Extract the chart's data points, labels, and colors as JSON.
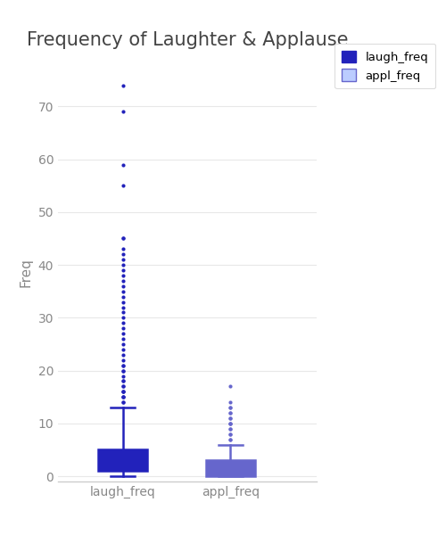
{
  "title": "Frequency of Laughter & Applause",
  "ylabel": "Freq",
  "bg_color": "#ffffff",
  "plot_bg_color": "#ffffff",
  "grid_color": "#e8e8e8",
  "laugh_freq": {
    "median": 2.0,
    "q1": 1.0,
    "q3": 5.0,
    "whisker_low": 0.0,
    "whisker_high": 13.0,
    "outliers": [
      14,
      14,
      15,
      15,
      15,
      16,
      16,
      16,
      17,
      17,
      18,
      18,
      19,
      20,
      20,
      21,
      21,
      22,
      23,
      24,
      25,
      26,
      27,
      28,
      29,
      30,
      31,
      32,
      33,
      34,
      35,
      36,
      37,
      38,
      39,
      40,
      41,
      42,
      43,
      45,
      45,
      55,
      59,
      69,
      74
    ],
    "box_color": "#7070cc",
    "box_edge_color": "#2222bb",
    "median_color": "#2222bb",
    "whisker_color": "#2222bb",
    "outlier_color": "#2222bb",
    "flier_marker": "o",
    "flier_size": 3
  },
  "appl_freq": {
    "median": 2.0,
    "q1": 0.0,
    "q3": 3.0,
    "whisker_low": 0.0,
    "whisker_high": 6.0,
    "outliers": [
      7,
      7,
      8,
      8,
      9,
      9,
      10,
      10,
      10,
      11,
      11,
      12,
      12,
      13,
      13,
      14,
      17
    ],
    "box_color": "#bbccff",
    "box_edge_color": "#6666cc",
    "median_color": "#6666cc",
    "whisker_color": "#6666cc",
    "outlier_color": "#6666cc",
    "flier_marker": "o",
    "flier_size": 3
  },
  "legend": {
    "laugh_label": "laugh_freq",
    "appl_label": "appl_freq",
    "laugh_color": "#2222bb",
    "appl_color": "#bbccff",
    "laugh_edge": "#2222bb",
    "appl_edge": "#6666cc"
  },
  "ylim": [
    -1,
    78
  ],
  "yticks": [
    0,
    10,
    20,
    30,
    40,
    50,
    60,
    70
  ],
  "xtick_labels": [
    "laugh_freq",
    "appl_freq"
  ],
  "title_fontsize": 15,
  "axis_label_fontsize": 11,
  "tick_label_fontsize": 10
}
